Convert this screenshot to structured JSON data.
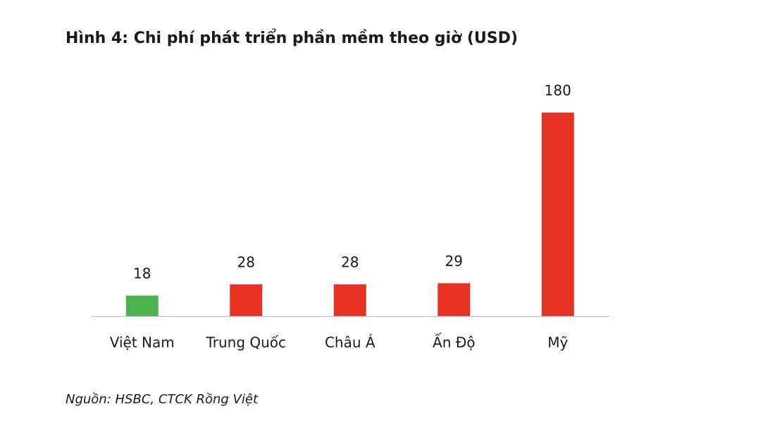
{
  "chart_data": {
    "type": "bar",
    "title": "Hình 4: Chi phí phát triển phần mềm theo giờ (USD)",
    "categories": [
      "Việt Nam",
      "Trung Quốc",
      "Châu Á",
      "Ấn Độ",
      "Mỹ"
    ],
    "values": [
      18,
      28,
      28,
      29,
      180
    ],
    "colors": [
      "#4caf50",
      "#e63323",
      "#e63323",
      "#e63323",
      "#e63323"
    ],
    "source": "Nguồn: HSBC, CTCK Rồng Việt"
  }
}
